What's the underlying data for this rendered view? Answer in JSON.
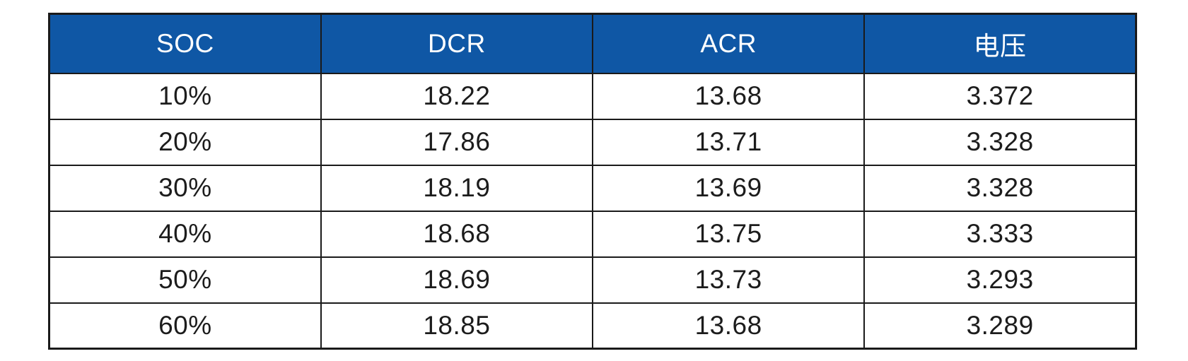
{
  "table": {
    "columns": [
      "SOC",
      "DCR",
      "ACR",
      "电压"
    ],
    "rows": [
      [
        "10%",
        "18.22",
        "13.68",
        "3.372"
      ],
      [
        "20%",
        "17.86",
        "13.71",
        "3.328"
      ],
      [
        "30%",
        "18.19",
        "13.69",
        "3.328"
      ],
      [
        "40%",
        "18.68",
        "13.75",
        "3.333"
      ],
      [
        "50%",
        "18.69",
        "13.73",
        "3.293"
      ],
      [
        "60%",
        "18.85",
        "13.68",
        "3.289"
      ]
    ]
  },
  "colors": {
    "header-bg": "#0F57A5",
    "header-text": "#FFFFFF",
    "border": "#1A1A1A",
    "cell-text": "#1C1C1C",
    "page-bg": "#FFFFFF"
  },
  "chart_data": {
    "type": "table",
    "columns": [
      "SOC",
      "DCR",
      "ACR",
      "电压"
    ],
    "rows": [
      {
        "SOC": "10%",
        "DCR": 18.22,
        "ACR": 13.68,
        "电压": 3.372
      },
      {
        "SOC": "20%",
        "DCR": 17.86,
        "ACR": 13.71,
        "电压": 3.328
      },
      {
        "SOC": "30%",
        "DCR": 18.19,
        "ACR": 13.69,
        "电压": 3.328
      },
      {
        "SOC": "40%",
        "DCR": 18.68,
        "ACR": 13.75,
        "电压": 3.333
      },
      {
        "SOC": "50%",
        "DCR": 18.69,
        "ACR": 13.73,
        "电压": 3.293
      },
      {
        "SOC": "60%",
        "DCR": 18.85,
        "ACR": 13.68,
        "电压": 3.289
      }
    ]
  }
}
